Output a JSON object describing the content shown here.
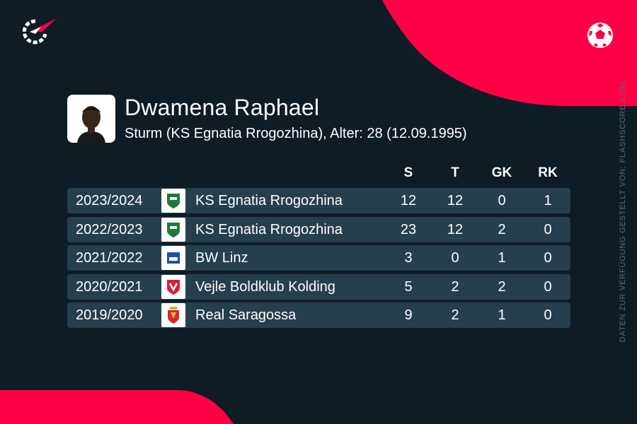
{
  "brand": {
    "accent": "#ff0046",
    "background": "#0e1c25",
    "row_bg": "#263f4c"
  },
  "player": {
    "name": "Dwamena Raphael",
    "subtitle": "Sturm (KS Egnatia Rrogozhina), Alter: 28 (12.09.1995)"
  },
  "source_note": "DATEN ZUR VERFÜGUNG GESTELLT VON: FLASHSCORE.COM",
  "table": {
    "headers": [
      "S",
      "T",
      "GK",
      "RK"
    ],
    "rows": [
      {
        "season": "2023/2024",
        "club": "KS Egnatia Rrogozhina",
        "crest": "egnatia-crest-icon",
        "s": "12",
        "t": "12",
        "gk": "0",
        "rk": "1"
      },
      {
        "season": "2022/2023",
        "club": "KS Egnatia Rrogozhina",
        "crest": "egnatia-crest-icon",
        "s": "23",
        "t": "12",
        "gk": "2",
        "rk": "0"
      },
      {
        "season": "2021/2022",
        "club": "BW Linz",
        "crest": "bw-linz-crest-icon",
        "s": "3",
        "t": "0",
        "gk": "1",
        "rk": "0"
      },
      {
        "season": "2020/2021",
        "club": "Vejle Boldklub Kolding",
        "crest": "vejle-crest-icon",
        "s": "5",
        "t": "2",
        "gk": "2",
        "rk": "0"
      },
      {
        "season": "2019/2020",
        "club": "Real Saragossa",
        "crest": "zaragoza-crest-icon",
        "s": "9",
        "t": "2",
        "gk": "1",
        "rk": "0"
      }
    ]
  }
}
